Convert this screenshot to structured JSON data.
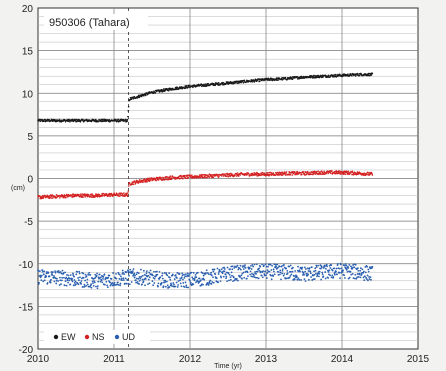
{
  "chart_data": {
    "type": "scatter",
    "title": "950306 (Tahara)",
    "xlabel": "Time (yr)",
    "ylabel": "(cm)",
    "xlim": [
      2010,
      2015
    ],
    "ylim": [
      -20,
      20
    ],
    "x_ticks": [
      "2010",
      "2011",
      "2012",
      "2013",
      "2014",
      "2015"
    ],
    "y_ticks": [
      "20",
      "15",
      "10",
      "5",
      "0",
      "-5",
      "-10",
      "-15",
      "-20"
    ],
    "event_marker_x": 2011.19,
    "grid": true,
    "legend_placement": "bottom-left",
    "series": [
      {
        "name": "EW",
        "color": "#1a1a1a",
        "x": [
          2010.0,
          2010.25,
          2010.5,
          2010.75,
          2011.0,
          2011.18,
          2011.2,
          2011.35,
          2011.5,
          2011.75,
          2012.0,
          2012.25,
          2012.5,
          2012.75,
          2013.0,
          2013.25,
          2013.5,
          2013.75,
          2014.0,
          2014.25,
          2014.4
        ],
        "y": [
          6.8,
          6.8,
          6.8,
          6.8,
          6.8,
          6.8,
          9.3,
          9.7,
          10.1,
          10.5,
          10.8,
          11.0,
          11.2,
          11.4,
          11.6,
          11.7,
          11.9,
          12.0,
          12.1,
          12.2,
          12.2
        ],
        "scatter": 0.15
      },
      {
        "name": "NS",
        "color": "#d42020",
        "x": [
          2010.0,
          2010.25,
          2010.5,
          2010.75,
          2011.0,
          2011.18,
          2011.2,
          2011.35,
          2011.5,
          2011.75,
          2012.0,
          2012.25,
          2012.5,
          2012.75,
          2013.0,
          2013.25,
          2013.5,
          2013.75,
          2014.0,
          2014.25,
          2014.4
        ],
        "y": [
          -2.2,
          -2.1,
          -2.0,
          -2.0,
          -1.9,
          -1.9,
          -0.6,
          -0.3,
          -0.1,
          0.1,
          0.2,
          0.3,
          0.4,
          0.5,
          0.5,
          0.6,
          0.6,
          0.7,
          0.7,
          0.6,
          0.5
        ],
        "scatter": 0.2
      },
      {
        "name": "UD",
        "color": "#2a5fb0",
        "x": [
          2010.0,
          2010.25,
          2010.5,
          2010.75,
          2011.0,
          2011.25,
          2011.5,
          2011.75,
          2012.0,
          2012.25,
          2012.5,
          2012.75,
          2013.0,
          2013.25,
          2013.5,
          2013.75,
          2014.0,
          2014.25,
          2014.4
        ],
        "y": [
          -11.5,
          -11.6,
          -11.8,
          -12.0,
          -11.8,
          -11.5,
          -11.7,
          -12.0,
          -11.9,
          -11.6,
          -11.2,
          -11.0,
          -10.9,
          -11.0,
          -11.2,
          -11.0,
          -10.8,
          -11.0,
          -11.2
        ],
        "scatter": 0.9
      }
    ]
  }
}
